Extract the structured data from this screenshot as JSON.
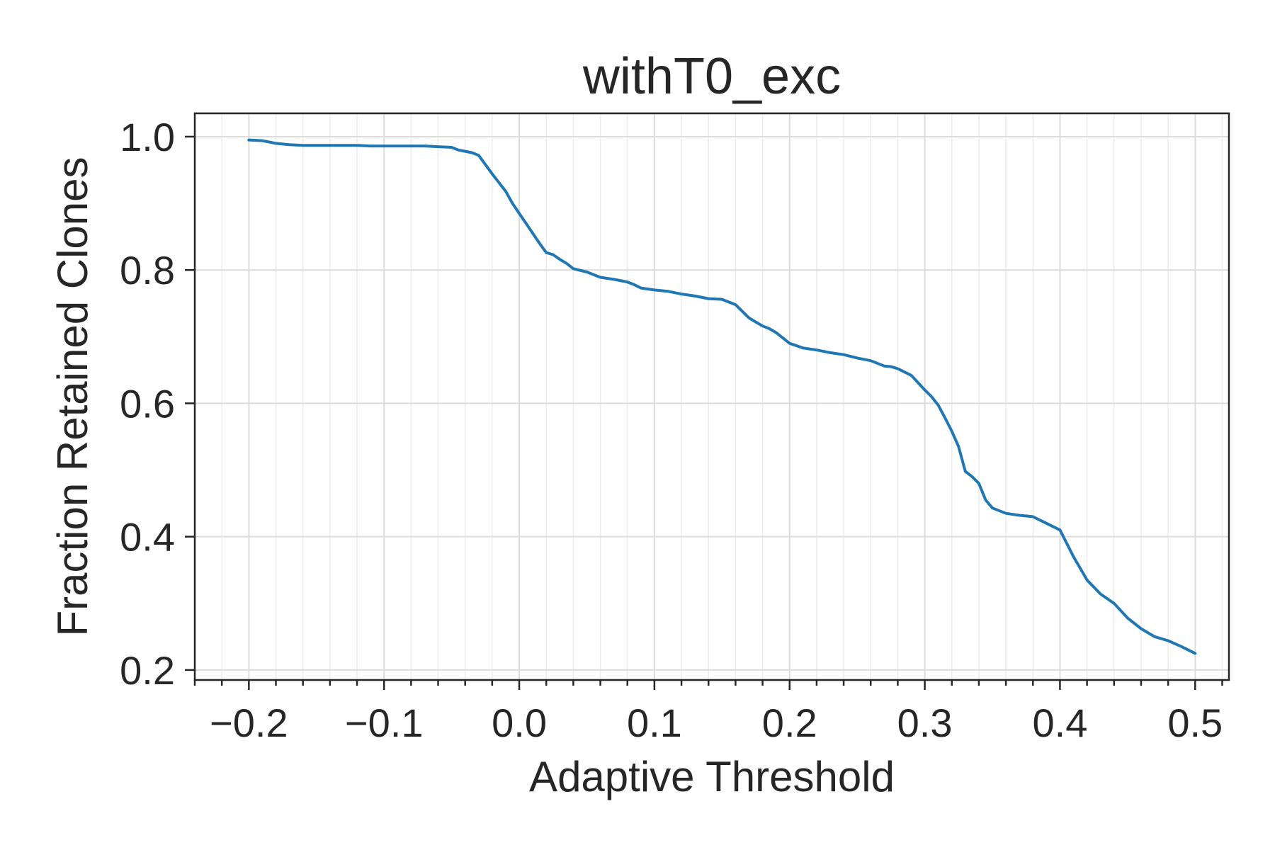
{
  "chart_data": {
    "type": "line",
    "title": "withT0_exc",
    "xlabel": "Adaptive Threshold",
    "ylabel": "Fraction Retained Clones",
    "xlim": [
      -0.24,
      0.525
    ],
    "ylim": [
      0.185,
      1.035
    ],
    "xticks": [
      -0.2,
      -0.1,
      0.0,
      0.1,
      0.2,
      0.3,
      0.4,
      0.5
    ],
    "xtick_labels": [
      "−0.2",
      "−0.1",
      "0.0",
      "0.1",
      "0.2",
      "0.3",
      "0.4",
      "0.5"
    ],
    "yticks": [
      0.2,
      0.4,
      0.6,
      0.8,
      1.0
    ],
    "ytick_labels": [
      "0.2",
      "0.4",
      "0.6",
      "0.8",
      "1.0"
    ],
    "x_minor_step": 0.02,
    "grid": true,
    "colors": {
      "series": "#1f77b4"
    },
    "series": [
      {
        "x": [
          -0.2,
          -0.19,
          -0.18,
          -0.17,
          -0.16,
          -0.15,
          -0.14,
          -0.13,
          -0.12,
          -0.11,
          -0.1,
          -0.09,
          -0.08,
          -0.07,
          -0.06,
          -0.05,
          -0.045,
          -0.04,
          -0.035,
          -0.03,
          -0.02,
          -0.01,
          -0.005,
          0.0,
          0.005,
          0.01,
          0.015,
          0.02,
          0.025,
          0.03,
          0.035,
          0.04,
          0.05,
          0.06,
          0.07,
          0.08,
          0.085,
          0.09,
          0.1,
          0.11,
          0.12,
          0.13,
          0.14,
          0.15,
          0.16,
          0.17,
          0.175,
          0.18,
          0.185,
          0.19,
          0.2,
          0.21,
          0.22,
          0.23,
          0.24,
          0.25,
          0.26,
          0.27,
          0.275,
          0.28,
          0.29,
          0.3,
          0.305,
          0.31,
          0.315,
          0.32,
          0.325,
          0.33,
          0.335,
          0.34,
          0.345,
          0.35,
          0.36,
          0.37,
          0.38,
          0.39,
          0.4,
          0.405,
          0.41,
          0.42,
          0.43,
          0.44,
          0.45,
          0.46,
          0.47,
          0.48,
          0.49,
          0.5
        ],
        "y": [
          0.995,
          0.994,
          0.99,
          0.988,
          0.987,
          0.987,
          0.987,
          0.987,
          0.987,
          0.986,
          0.986,
          0.986,
          0.986,
          0.986,
          0.985,
          0.984,
          0.98,
          0.978,
          0.976,
          0.972,
          0.944,
          0.918,
          0.9,
          0.885,
          0.87,
          0.855,
          0.84,
          0.826,
          0.823,
          0.816,
          0.81,
          0.802,
          0.797,
          0.789,
          0.786,
          0.782,
          0.778,
          0.773,
          0.77,
          0.768,
          0.764,
          0.761,
          0.757,
          0.756,
          0.748,
          0.728,
          0.722,
          0.716,
          0.712,
          0.706,
          0.69,
          0.683,
          0.68,
          0.676,
          0.673,
          0.668,
          0.664,
          0.656,
          0.655,
          0.652,
          0.642,
          0.62,
          0.61,
          0.597,
          0.578,
          0.558,
          0.535,
          0.498,
          0.49,
          0.48,
          0.455,
          0.443,
          0.435,
          0.432,
          0.43,
          0.42,
          0.41,
          0.39,
          0.37,
          0.335,
          0.314,
          0.3,
          0.278,
          0.262,
          0.25,
          0.244,
          0.235,
          0.225
        ]
      }
    ]
  }
}
